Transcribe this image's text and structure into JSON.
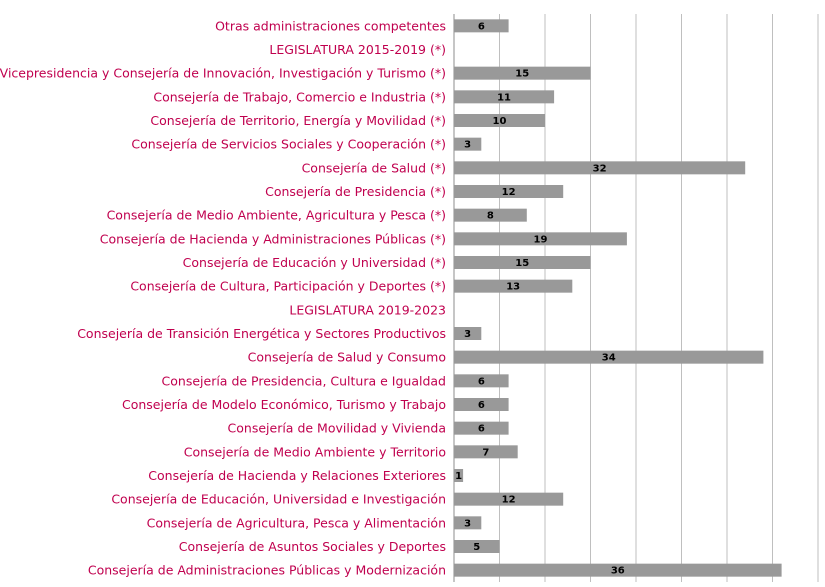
{
  "chart_data": {
    "type": "bar",
    "orientation": "horizontal",
    "title": "",
    "xlabel": "",
    "ylabel": "",
    "xlim": [
      0,
      40
    ],
    "x_gridline_step": 5,
    "grid": true,
    "legend": "none",
    "colors": {
      "bar": "#999999",
      "label": "#c0004e",
      "grid": "#bfbfbf",
      "value": "#000000"
    },
    "categories": [
      "Otras administraciones competentes",
      "LEGISLATURA  2015-2019 (*)",
      "Vicepresidencia y Consejería de Innovación, Investigación y Turismo (*)",
      "Consejería de Trabajo, Comercio e Industria (*)",
      "Consejería de Territorio, Energía y Movilidad (*)",
      "Consejería de Servicios Sociales y Cooperación (*)",
      "Consejería de Salud (*)",
      "Consejería de Presidencia (*)",
      "Consejería de Medio Ambiente, Agricultura y Pesca (*)",
      "Consejería de Hacienda y Administraciones Públicas (*)",
      "Consejería de Educación y  Universidad (*)",
      "Consejería de Cultura, Participación y Deportes (*)",
      "LEGISLATURA  2019-2023",
      "Consejería de Transición Energética y Sectores Productivos",
      "Consejería de Salud y Consumo",
      "Consejería de Presidencia, Cultura e Igualdad",
      "Consejería de Modelo Económico, Turismo y Trabajo",
      "Consejería de Movilidad y Vivienda",
      "Consejería de Medio Ambiente y Territorio",
      "Consejería de Hacienda y Relaciones Exteriores",
      "Consejería de Educación, Universidad e Investigación",
      "Consejería de Agricultura, Pesca y Alimentación",
      "Consejería de Asuntos Sociales y Deportes",
      "Consejería de Administraciones Públicas y Modernización"
    ],
    "values": [
      6,
      null,
      15,
      11,
      10,
      3,
      32,
      12,
      8,
      19,
      15,
      13,
      null,
      3,
      34,
      6,
      6,
      6,
      7,
      1,
      12,
      3,
      5,
      36
    ]
  }
}
